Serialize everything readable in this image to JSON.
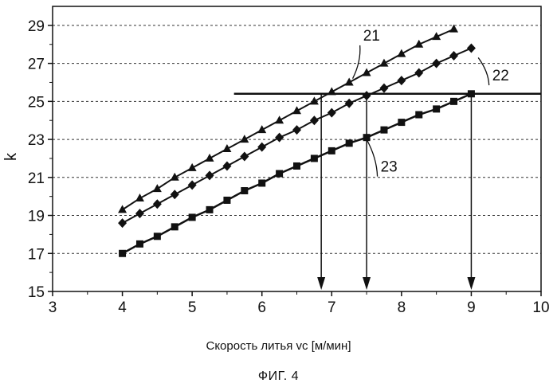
{
  "chart_data": {
    "type": "line",
    "xlabel": "Скорость литья vc [м/мин]",
    "ylabel": "k",
    "caption": "ФИГ. 4",
    "xlim": [
      3,
      10
    ],
    "ylim": [
      15,
      30
    ],
    "xticks": [
      "3",
      "4",
      "5",
      "6",
      "7",
      "8",
      "9",
      "10"
    ],
    "yticks": [
      "15",
      "17",
      "19",
      "21",
      "23",
      "25",
      "27",
      "29"
    ],
    "grid": "horizontal dashed",
    "series": [
      {
        "name": "21",
        "marker": "triangle",
        "x": [
          4.0,
          4.25,
          4.5,
          4.75,
          5.0,
          5.25,
          5.5,
          5.75,
          6.0,
          6.25,
          6.5,
          6.75,
          7.0,
          7.25,
          7.5,
          7.75,
          8.0,
          8.25,
          8.5,
          8.75
        ],
        "y": [
          19.3,
          19.9,
          20.4,
          21.0,
          21.5,
          22.0,
          22.5,
          23.0,
          23.5,
          24.0,
          24.5,
          25.0,
          25.5,
          26.0,
          26.5,
          27.0,
          27.5,
          28.0,
          28.4,
          28.8
        ]
      },
      {
        "name": "22",
        "marker": "diamond",
        "x": [
          4.0,
          4.25,
          4.5,
          4.75,
          5.0,
          5.25,
          5.5,
          5.75,
          6.0,
          6.25,
          6.5,
          6.75,
          7.0,
          7.25,
          7.5,
          7.75,
          8.0,
          8.25,
          8.5,
          8.75,
          9.0
        ],
        "y": [
          18.6,
          19.1,
          19.6,
          20.1,
          20.6,
          21.1,
          21.6,
          22.1,
          22.6,
          23.1,
          23.5,
          24.0,
          24.4,
          24.9,
          25.3,
          25.7,
          26.1,
          26.5,
          27.0,
          27.4,
          27.8
        ]
      },
      {
        "name": "23",
        "marker": "square",
        "x": [
          4.0,
          4.25,
          4.5,
          4.75,
          5.0,
          5.25,
          5.5,
          5.75,
          6.0,
          6.25,
          6.5,
          6.75,
          7.0,
          7.25,
          7.5,
          7.75,
          8.0,
          8.25,
          8.5,
          8.75,
          9.0
        ],
        "y": [
          17.0,
          17.5,
          17.9,
          18.4,
          18.9,
          19.3,
          19.8,
          20.3,
          20.7,
          21.2,
          21.6,
          22.0,
          22.4,
          22.8,
          23.1,
          23.5,
          23.9,
          24.3,
          24.6,
          25.0,
          25.4
        ]
      }
    ],
    "reference_line": {
      "y": 25.4,
      "x_start": 5.6,
      "x_end": 10
    },
    "arrows": [
      {
        "x": 6.85,
        "y_from": 25.4,
        "y_to": 15
      },
      {
        "x": 7.5,
        "y_from": 25.4,
        "y_to": 15
      },
      {
        "x": 9.0,
        "y_from": 25.4,
        "y_to": 15
      }
    ],
    "annotations": [
      {
        "text": "21",
        "x": 7.45,
        "y": 28.2,
        "points_to_series": 0,
        "leader_x": 7.3,
        "leader_y": 26.2
      },
      {
        "text": "22",
        "x": 9.3,
        "y": 26.1,
        "points_to_series": 1,
        "leader_x": 9.1,
        "leader_y": 27.3
      },
      {
        "text": "23",
        "x": 7.7,
        "y": 21.3,
        "points_to_series": 2,
        "leader_x": 7.5,
        "leader_y": 23.0
      }
    ]
  }
}
